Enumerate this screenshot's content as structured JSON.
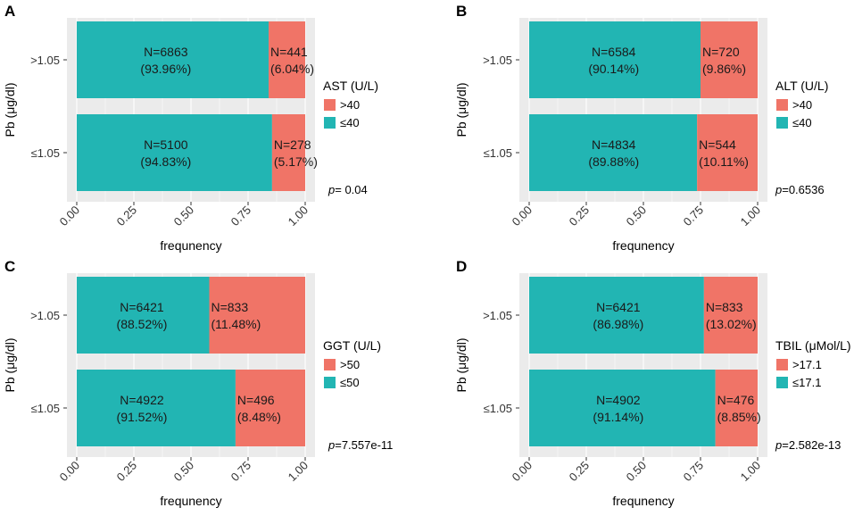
{
  "colors": {
    "high": "#F07467",
    "low": "#22B5B3",
    "panel_bg": "#EBEBEB",
    "grid": "#ffffff"
  },
  "y_axis_label": "Pb (μg/dl)",
  "x_axis_label": "frequnency",
  "chart_data": [
    {
      "type": "bar",
      "stacked": true,
      "orientation": "horizontal",
      "panel": "A",
      "categories": [
        ">1.05",
        "≤1.05"
      ],
      "xticks": [
        "0.00",
        "0.25",
        "0.50",
        "0.75",
        "1.00"
      ],
      "xlim": [
        0,
        1
      ],
      "legend_title": "AST (U/L)",
      "series": [
        {
          "name": "≤40",
          "values": [
            0.9396,
            0.9483
          ],
          "labels": [
            [
              "N=6863",
              "(93.96%)"
            ],
            [
              "N=5100",
              "(94.83%)"
            ]
          ],
          "label_x": [
            0.39,
            0.39
          ]
        },
        {
          "name": ">40",
          "values": [
            0.0604,
            0.0517
          ],
          "labels": [
            [
              "N=441",
              "(6.04%)"
            ],
            [
              "N=278",
              "(5.17%)"
            ]
          ],
          "label_x": [
            0.835,
            0.855
          ]
        }
      ],
      "bar_fractions": [
        0.84,
        0.855
      ],
      "p_prefix": "p",
      "p_value": "= 0.04"
    },
    {
      "type": "bar",
      "stacked": true,
      "orientation": "horizontal",
      "panel": "B",
      "categories": [
        ">1.05",
        "≤1.05"
      ],
      "xticks": [
        "0.00",
        "0.25",
        "0.50",
        "0.75",
        "1.00"
      ],
      "xlim": [
        0,
        1
      ],
      "legend_title": "ALT (U/L)",
      "series": [
        {
          "name": "≤40",
          "values": [
            0.9014,
            0.8988
          ],
          "labels": [
            [
              "N=6584",
              "(90.14%)"
            ],
            [
              "N=4834",
              "(89.88%)"
            ]
          ],
          "label_x": [
            0.37,
            0.37
          ]
        },
        {
          "name": ">40",
          "values": [
            0.0986,
            0.1011
          ],
          "labels": [
            [
              "N=720",
              "(9.86%)"
            ],
            [
              "N=544",
              "(10.11%)"
            ]
          ],
          "label_x": [
            0.81,
            0.8
          ]
        }
      ],
      "bar_fractions": [
        0.75,
        0.735
      ],
      "p_prefix": "p",
      "p_value": "=0.6536"
    },
    {
      "type": "bar",
      "stacked": true,
      "orientation": "horizontal",
      "panel": "C",
      "categories": [
        ">1.05",
        "≤1.05"
      ],
      "xticks": [
        "0.00",
        "0.25",
        "0.50",
        "0.75",
        "1.00"
      ],
      "xlim": [
        0,
        1
      ],
      "legend_title": "GGT (U/L)",
      "series": [
        {
          "name": "≤50",
          "values": [
            0.8852,
            0.9152
          ],
          "labels": [
            [
              "N=6421",
              "(88.52%)"
            ],
            [
              "N=4922",
              "(91.52%)"
            ]
          ],
          "label_x": [
            0.285,
            0.285
          ]
        },
        {
          "name": ">50",
          "values": [
            0.1148,
            0.0848
          ],
          "labels": [
            [
              "N=833",
              "(11.48%)"
            ],
            [
              "N=496",
              "(8.48%)"
            ]
          ],
          "label_x": [
            0.82,
            0.82
          ]
        }
      ],
      "bar_fractions": [
        0.58,
        0.695
      ],
      "p_prefix": "p",
      "p_value": "=7.557e-11"
    },
    {
      "type": "bar",
      "stacked": true,
      "orientation": "horizontal",
      "panel": "D",
      "categories": [
        ">1.05",
        "≤1.05"
      ],
      "xticks": [
        "0.00",
        "0.25",
        "0.50",
        "0.75",
        "1.00"
      ],
      "xlim": [
        0,
        1
      ],
      "legend_title": "TBIL (μMol/L)",
      "series": [
        {
          "name": "≤17.1",
          "values": [
            0.8698,
            0.9114
          ],
          "labels": [
            [
              "N=6421",
              "(86.98%)"
            ],
            [
              "N=4902",
              "(91.14%)"
            ]
          ],
          "label_x": [
            0.39,
            0.39
          ]
        },
        {
          "name": ">17.1",
          "values": [
            0.1302,
            0.0885
          ],
          "labels": [
            [
              "N=833",
              "(13.02%)"
            ],
            [
              "N=476",
              "(8.85%)"
            ]
          ],
          "label_x": [
            0.885,
            0.91
          ]
        }
      ],
      "bar_fractions": [
        0.765,
        0.815
      ],
      "p_prefix": "p",
      "p_value": "=2.582e-13"
    }
  ]
}
